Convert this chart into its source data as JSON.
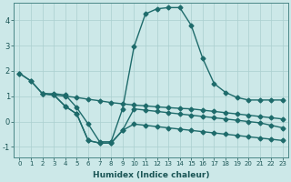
{
  "xlabel": "Humidex (Indice chaleur)",
  "background_color": "#cce8e8",
  "line_color": "#1e6b6b",
  "grid_color": "#aacfcf",
  "xlim": [
    -0.5,
    23.5
  ],
  "ylim": [
    -1.4,
    4.7
  ],
  "xticks": [
    0,
    1,
    2,
    3,
    4,
    5,
    6,
    7,
    8,
    9,
    10,
    11,
    12,
    13,
    14,
    15,
    16,
    17,
    18,
    19,
    20,
    21,
    22,
    23
  ],
  "yticks": [
    -1,
    0,
    1,
    2,
    3,
    4
  ],
  "line1_x": [
    0,
    1,
    2,
    3,
    4,
    5,
    6,
    7,
    8,
    9,
    10,
    11,
    12,
    13,
    14,
    15,
    16,
    17,
    18,
    19,
    20,
    21,
    22,
    23
  ],
  "line1_y": [
    1.9,
    1.6,
    1.1,
    1.1,
    1.05,
    0.55,
    -0.1,
    -0.8,
    -0.8,
    0.5,
    2.95,
    4.25,
    4.45,
    4.5,
    4.5,
    3.8,
    2.5,
    1.5,
    1.15,
    0.95,
    0.85,
    0.85,
    0.85,
    0.85
  ],
  "line2_x": [
    0,
    1,
    2,
    3,
    4,
    5,
    6,
    7,
    8,
    9,
    10,
    11,
    12,
    13,
    14,
    15,
    16,
    17,
    18,
    19,
    20,
    21,
    22,
    23
  ],
  "line2_y": [
    1.9,
    1.6,
    1.1,
    1.05,
    1.0,
    0.95,
    0.88,
    0.82,
    0.75,
    0.7,
    0.65,
    0.62,
    0.58,
    0.55,
    0.52,
    0.5,
    0.45,
    0.4,
    0.35,
    0.3,
    0.25,
    0.2,
    0.15,
    0.1
  ],
  "line3_x": [
    2,
    3,
    4,
    5,
    6,
    7,
    8,
    9,
    10,
    11,
    12,
    13,
    14,
    15,
    16,
    17,
    18,
    19,
    20,
    21,
    22,
    23
  ],
  "line3_y": [
    1.1,
    1.05,
    0.6,
    0.3,
    -0.75,
    -0.85,
    -0.85,
    -0.35,
    0.5,
    0.45,
    0.4,
    0.35,
    0.3,
    0.25,
    0.2,
    0.15,
    0.1,
    0.05,
    0.0,
    -0.05,
    -0.15,
    -0.25
  ],
  "line4_x": [
    2,
    3,
    4,
    5,
    6,
    7,
    8,
    9,
    10,
    11,
    12,
    13,
    14,
    15,
    16,
    17,
    18,
    19,
    20,
    21,
    22,
    23
  ],
  "line4_y": [
    1.1,
    1.05,
    0.6,
    0.3,
    -0.75,
    -0.85,
    -0.85,
    -0.35,
    -0.1,
    -0.15,
    -0.2,
    -0.25,
    -0.3,
    -0.35,
    -0.4,
    -0.45,
    -0.5,
    -0.55,
    -0.6,
    -0.65,
    -0.7,
    -0.75
  ],
  "marker_size": 2.5,
  "line_width": 1.0
}
